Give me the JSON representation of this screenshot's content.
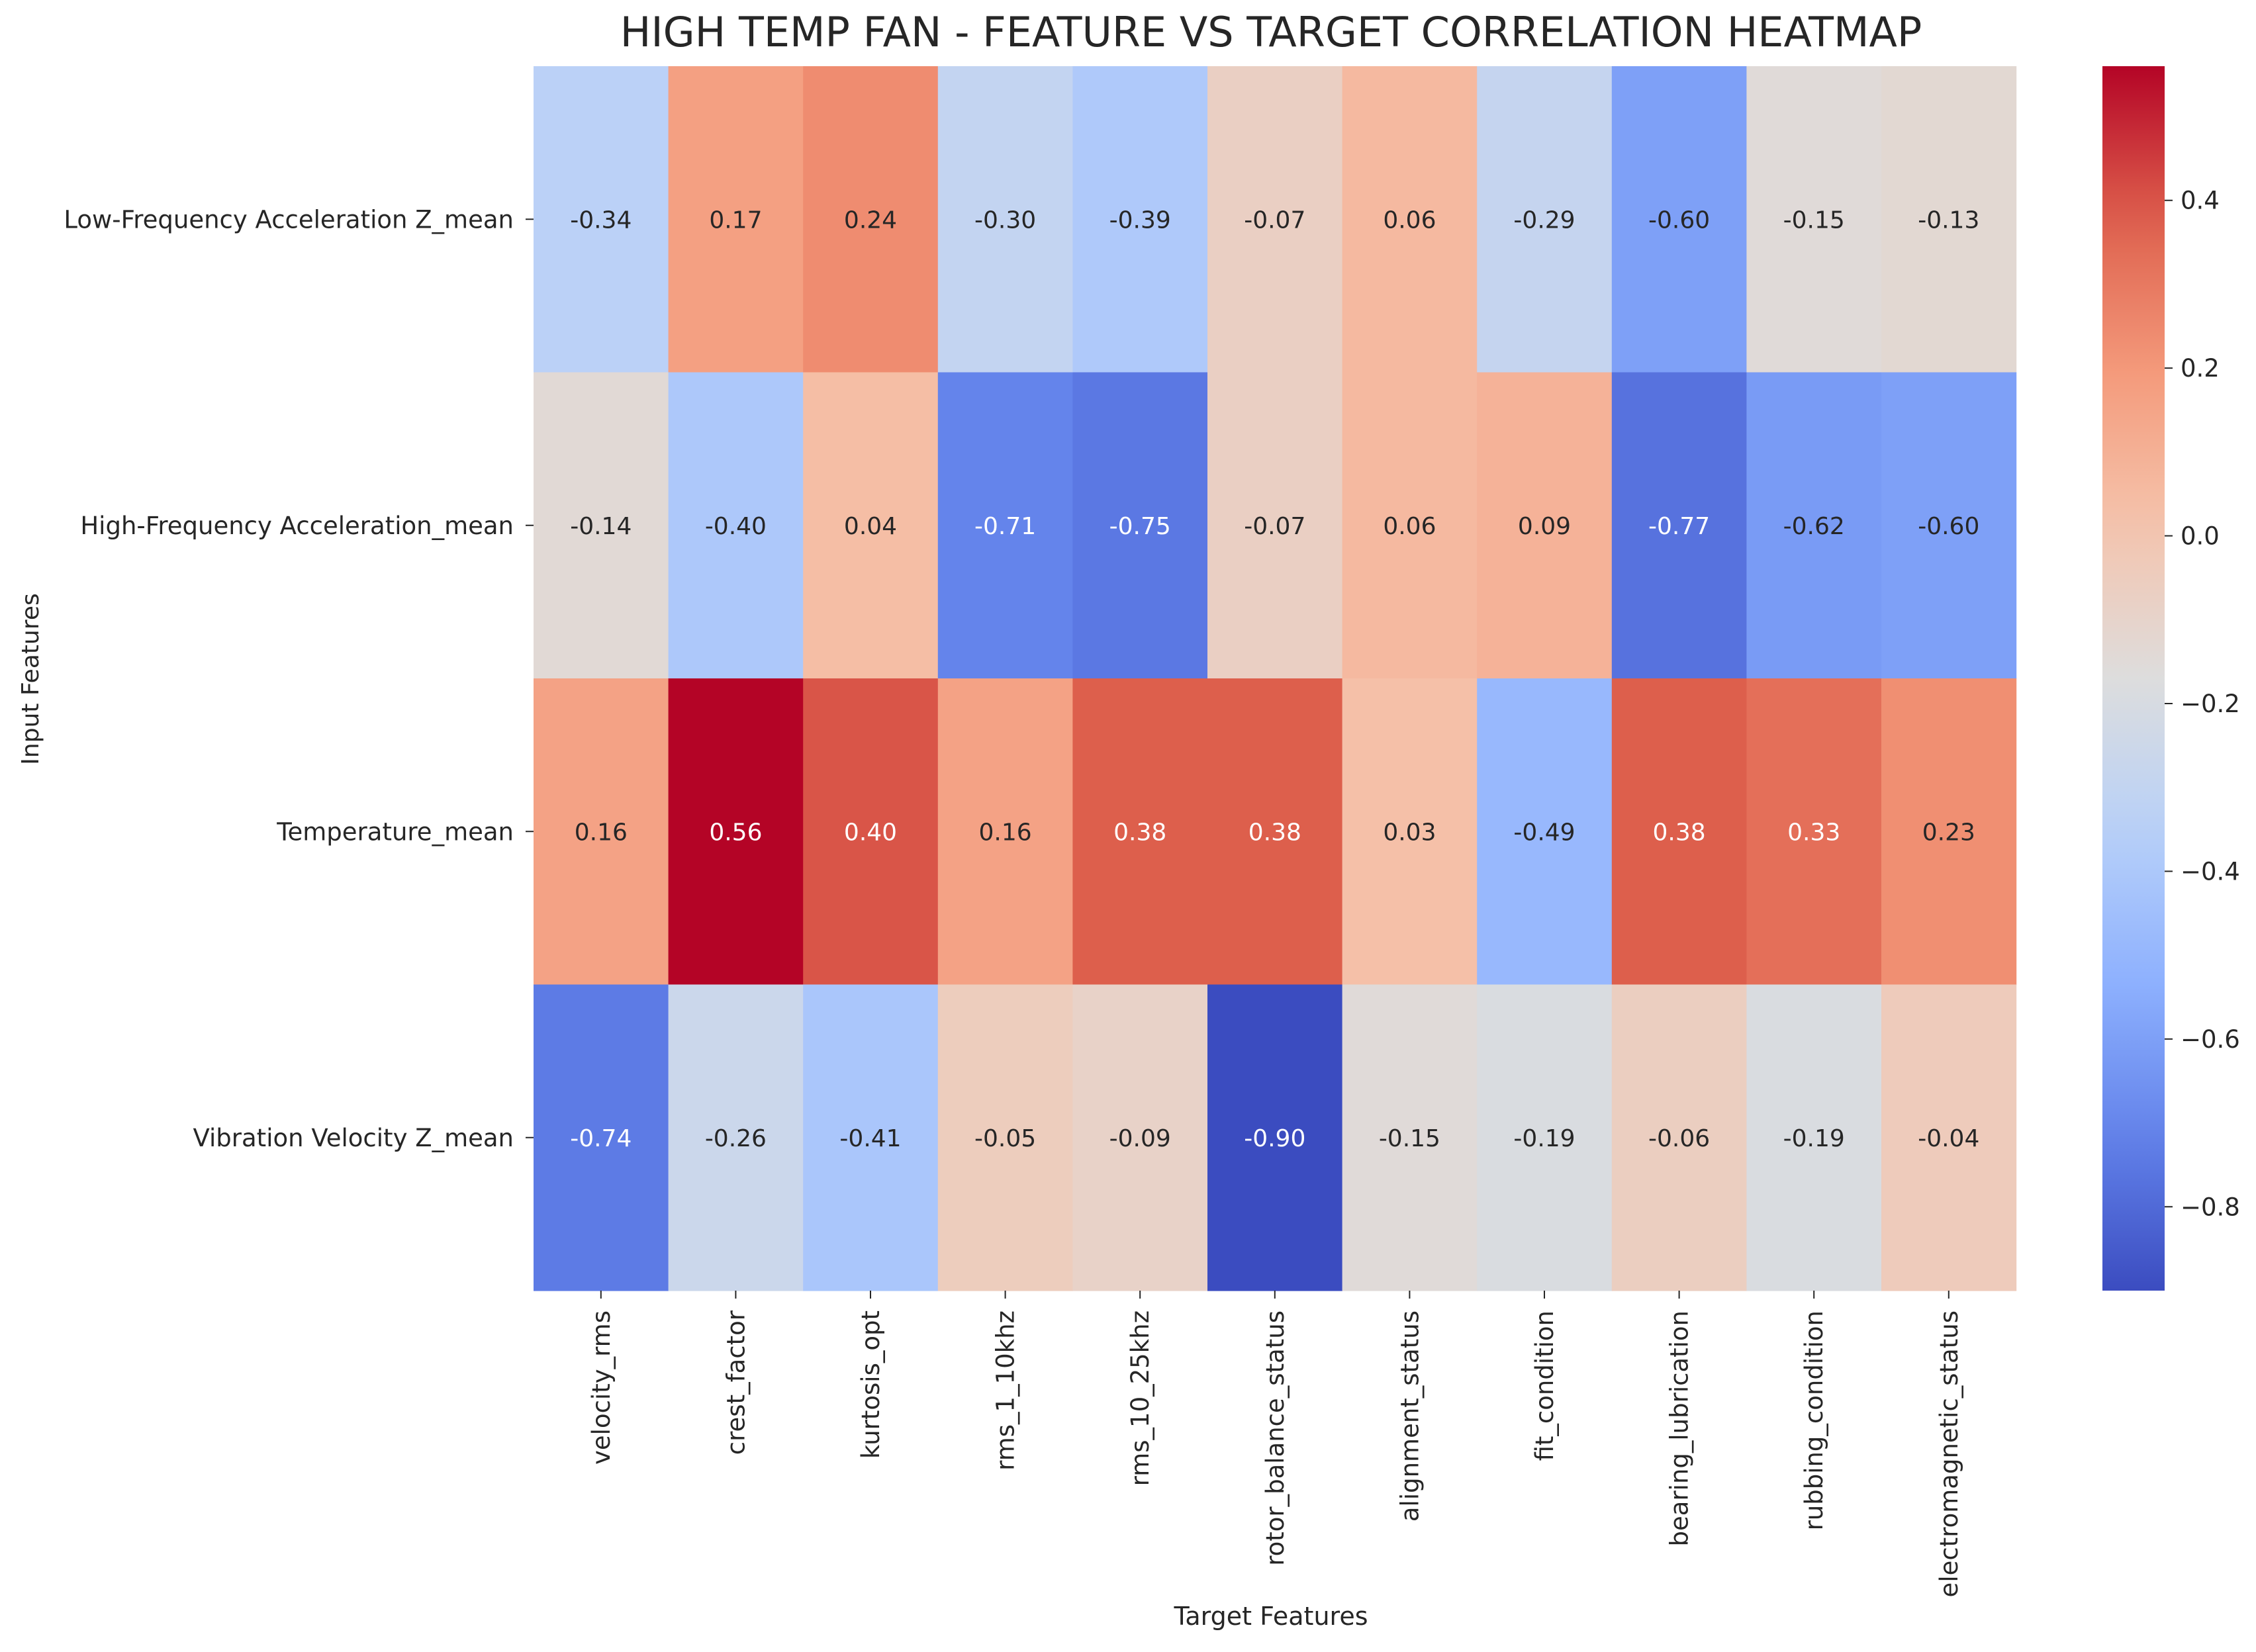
{
  "chart_data": {
    "type": "heatmap",
    "title": "HIGH TEMP FAN - FEATURE VS TARGET CORRELATION HEATMAP",
    "xlabel": "Target Features",
    "ylabel": "Input Features",
    "x_categories": [
      "velocity_rms",
      "crest_factor",
      "kurtosis_opt",
      "rms_1_10khz",
      "rms_10_25khz",
      "rotor_balance_status",
      "alignment_status",
      "fit_condition",
      "bearing_lubrication",
      "rubbing_condition",
      "electromagnetic_status"
    ],
    "y_categories": [
      "Low-Frequency Acceleration Z_mean",
      "High-Frequency Acceleration_mean",
      "Temperature_mean",
      "Vibration Velocity Z_mean"
    ],
    "values": [
      [
        -0.34,
        0.17,
        0.24,
        -0.3,
        -0.39,
        -0.07,
        0.06,
        -0.29,
        -0.6,
        -0.15,
        -0.13
      ],
      [
        -0.14,
        -0.4,
        0.04,
        -0.71,
        -0.75,
        -0.07,
        0.06,
        0.09,
        -0.77,
        -0.62,
        -0.6
      ],
      [
        0.16,
        0.56,
        0.4,
        0.16,
        0.38,
        0.38,
        0.03,
        -0.49,
        0.38,
        0.33,
        0.23
      ],
      [
        -0.74,
        -0.26,
        -0.41,
        -0.05,
        -0.09,
        -0.9,
        -0.15,
        -0.19,
        -0.06,
        -0.19,
        -0.04
      ]
    ],
    "value_labels": [
      [
        "-0.34",
        "0.17",
        "0.24",
        "-0.30",
        "-0.39",
        "-0.07",
        "0.06",
        "-0.29",
        "-0.60",
        "-0.15",
        "-0.13"
      ],
      [
        "-0.14",
        "-0.40",
        "0.04",
        "-0.71",
        "-0.75",
        "-0.07",
        "0.06",
        "0.09",
        "-0.77",
        "-0.62",
        "-0.60"
      ],
      [
        "0.16",
        "0.56",
        "0.40",
        "0.16",
        "0.38",
        "0.38",
        "0.03",
        "-0.49",
        "0.38",
        "0.33",
        "0.23"
      ],
      [
        "-0.74",
        "-0.26",
        "-0.41",
        "-0.05",
        "-0.09",
        "-0.90",
        "-0.15",
        "-0.19",
        "-0.06",
        "-0.19",
        "-0.04"
      ]
    ],
    "colormap": "coolwarm",
    "vmin": -0.9,
    "vmax": 0.56,
    "colorbar": {
      "ticks": [
        0.4,
        0.2,
        0.0,
        -0.2,
        -0.4,
        -0.6,
        -0.8
      ],
      "tick_labels": [
        "0.4",
        "0.2",
        "0.0",
        "−0.2",
        "−0.4",
        "−0.6",
        "−0.8"
      ]
    },
    "annotations_on": true,
    "grid": false
  }
}
